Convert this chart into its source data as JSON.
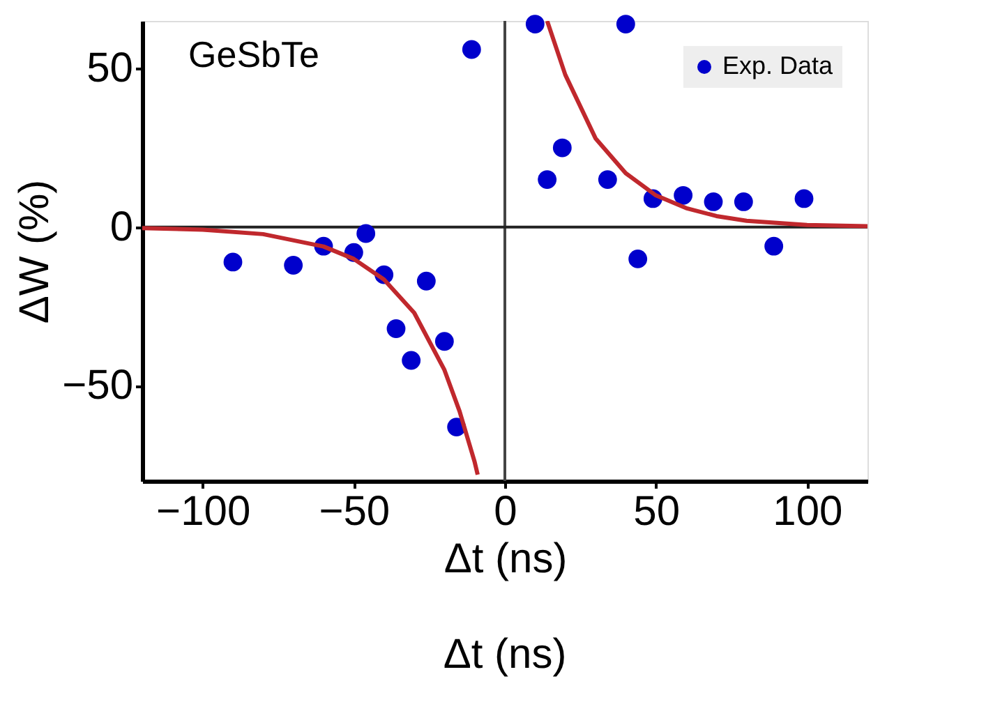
{
  "chart_data": {
    "type": "scatter",
    "xlabel": "Δt (ns)",
    "ylabel": "ΔW (%)",
    "xlim": [
      -120,
      120
    ],
    "ylim": [
      -80,
      65
    ],
    "xticks": [
      -100,
      -50,
      0,
      50,
      100
    ],
    "yticks": [
      -50,
      0,
      50
    ],
    "grid": false,
    "legend": "top right",
    "ref_lines": [
      {
        "axis": "x",
        "value": 0,
        "color": "#444444"
      },
      {
        "axis": "y",
        "value": 0,
        "color": "#222222"
      }
    ],
    "annotations": [
      "GeSbTe",
      "Δt (ns)"
    ],
    "series": [
      {
        "name": "Exp. Data",
        "color": "#0000cc",
        "marker": "circle",
        "x": [
          -90,
          -70,
          -60,
          -50,
          -46,
          -40,
          -36,
          -31,
          -26,
          -20,
          -16,
          -11,
          10,
          14,
          19,
          34,
          40,
          44,
          49,
          59,
          69,
          79,
          89,
          99
        ],
        "values": [
          -11,
          -12,
          -6,
          -8,
          -2,
          -15,
          -32,
          -42,
          -17,
          -36,
          -63,
          56,
          64,
          15,
          25,
          15,
          64,
          -10,
          9,
          10,
          8,
          8,
          -6,
          9
        ]
      },
      {
        "type": "line",
        "color": "#c0282d",
        "line_style": "solid",
        "marker": "none",
        "x": [
          -120,
          -100,
          -80,
          -60,
          -50,
          -40,
          -30,
          -20,
          -15,
          -10,
          -9
        ],
        "values": [
          -0.3,
          -0.8,
          -2.2,
          -6.1,
          -10,
          -16.5,
          -27,
          -45,
          -58,
          -74,
          -78
        ]
      },
      {
        "type": "line",
        "color": "#c0282d",
        "line_style": "solid",
        "marker": "none",
        "x": [
          14,
          20,
          30,
          40,
          50,
          60,
          70,
          80,
          100,
          120
        ],
        "values": [
          65,
          48,
          28,
          17,
          10,
          6,
          3.5,
          2,
          0.7,
          0.3
        ]
      }
    ]
  }
}
